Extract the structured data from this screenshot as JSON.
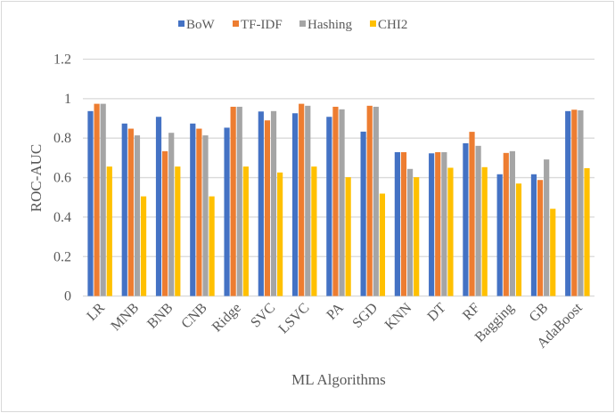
{
  "chart_data": {
    "type": "bar",
    "title": "",
    "xlabel": "ML Algorithms",
    "ylabel": "ROC-AUC",
    "ylim": [
      0,
      1.2
    ],
    "yticks": [
      "0",
      "0.2",
      "0.4",
      "0.6",
      "0.8",
      "1",
      "1.2"
    ],
    "grid": true,
    "legend_position": "top",
    "categories": [
      "LR",
      "MNB",
      "BNB",
      "CNB",
      "Ridge",
      "SVC",
      "LSVC",
      "PA",
      "SGD",
      "KNN",
      "DT",
      "RF",
      "Bagging",
      "GB",
      "AdaBoost"
    ],
    "series": [
      {
        "name": "BoW",
        "color": "#4472c4",
        "values": [
          0.937,
          0.874,
          0.908,
          0.874,
          0.853,
          0.935,
          0.926,
          0.908,
          0.833,
          0.729,
          0.723,
          0.774,
          0.617,
          0.617,
          0.937
        ]
      },
      {
        "name": "TF-IDF",
        "color": "#ed7d31",
        "values": [
          0.974,
          0.848,
          0.734,
          0.848,
          0.959,
          0.89,
          0.974,
          0.959,
          0.964,
          0.729,
          0.729,
          0.832,
          0.725,
          0.588,
          0.944
        ]
      },
      {
        "name": "Hashing",
        "color": "#a5a5a5",
        "values": [
          0.974,
          0.814,
          0.827,
          0.814,
          0.959,
          0.937,
          0.964,
          0.946,
          0.959,
          0.644,
          0.729,
          0.761,
          0.734,
          0.692,
          0.941
        ]
      },
      {
        "name": "CHI2",
        "color": "#ffc000",
        "values": [
          0.656,
          0.505,
          0.656,
          0.505,
          0.656,
          0.626,
          0.656,
          0.602,
          0.519,
          0.602,
          0.65,
          0.653,
          0.57,
          0.442,
          0.648
        ]
      }
    ]
  }
}
